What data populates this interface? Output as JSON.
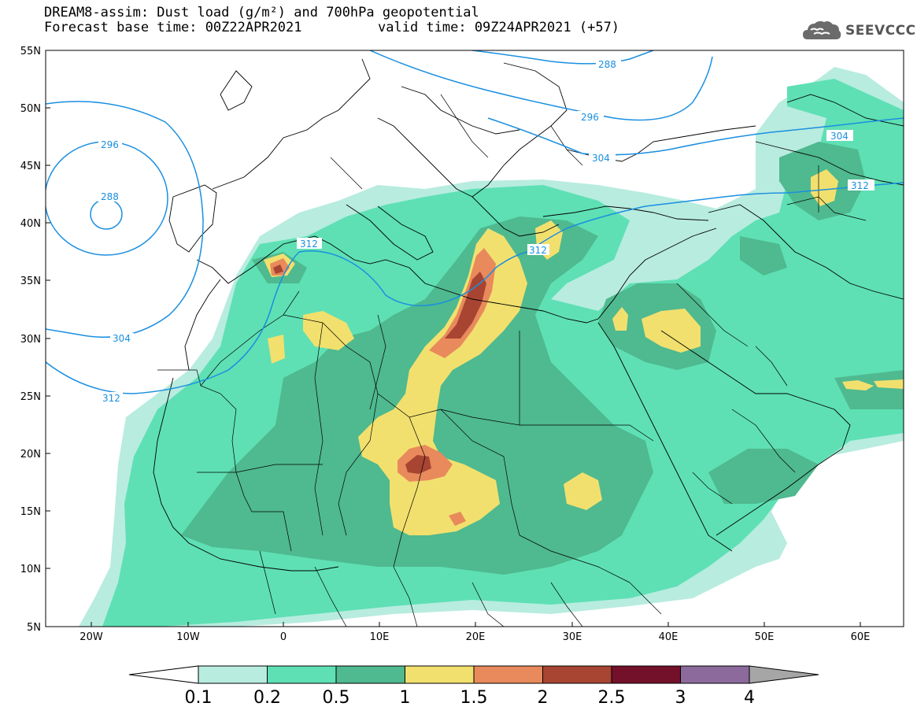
{
  "title": {
    "line1": "DREAM8-assim: Dust load (g/m²) and 700hPa geopotential",
    "line2": "Forecast base time: 00Z22APR2021",
    "valid": "valid time: 09Z24APR2021 (+57)"
  },
  "logo": {
    "text": "SEEVCCC",
    "icon": "cloud-icon"
  },
  "axes": {
    "lon_ticks": [
      "20W",
      "10W",
      "0",
      "10E",
      "20E",
      "30E",
      "40E",
      "50E",
      "60E"
    ],
    "lat_ticks": [
      "55N",
      "50N",
      "45N",
      "40N",
      "35N",
      "30N",
      "25N",
      "20N",
      "15N",
      "10N",
      "5N"
    ]
  },
  "contours": {
    "geopotential_labels": [
      "288",
      "296",
      "304",
      "312",
      "296",
      "304",
      "288",
      "304",
      "312",
      "312",
      "312"
    ],
    "line_color": "#1a8fe0"
  },
  "colorbar": {
    "labels": [
      "0.1",
      "0.2",
      "0.5",
      "1",
      "1.5",
      "2",
      "2.5",
      "3",
      "4"
    ],
    "colors": [
      "#b8ecdf",
      "#5ee0b4",
      "#4fb98f",
      "#f2e06e",
      "#e88a5c",
      "#a84432",
      "#73102a",
      "#8c6a9c"
    ],
    "under_color": "#ffffff",
    "over_color": "#a6a6a6"
  }
}
